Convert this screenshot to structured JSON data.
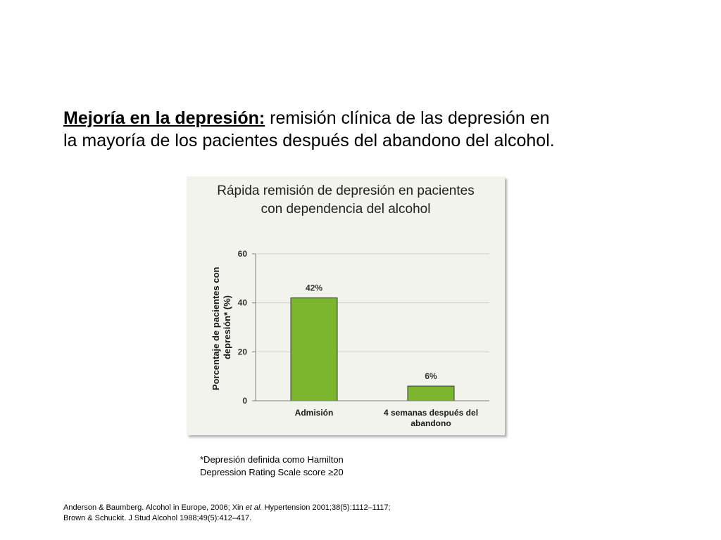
{
  "heading": {
    "lead": "Mejoría en la depresión:",
    "line1_rest": " remisión clínica de las depresión en",
    "line2": "la mayoría de los pacientes después del abandono del alcohol."
  },
  "chart_data": {
    "type": "bar",
    "title_line1": "Rápida remisión de depresión en pacientes",
    "title_line2": "con dependencia del alcohol",
    "ylabel_line1": "Porcentaje de pacientes con",
    "ylabel_line2": "depresión* (%)",
    "xlabel": "",
    "categories": [
      [
        "Admisión"
      ],
      [
        "4 semanas después del",
        "abandono"
      ]
    ],
    "values": [
      42,
      6
    ],
    "data_labels": [
      "42%",
      "6%"
    ],
    "yticks": [
      0,
      20,
      40,
      60
    ],
    "ylim": [
      0,
      60
    ],
    "grid": true,
    "bar_color": "#7cb62f"
  },
  "footnote": {
    "line1": "*Depresión definida como Hamilton",
    "line2": "Depression Rating Scale score ≥20"
  },
  "references": {
    "line1_pre": "Anderson & Baumberg. Alcohol in Europe, 2006; Xin ",
    "line1_em": "et al.",
    "line1_post": " Hypertension 2001;38(5):1112–1117;",
    "line2": "Brown & Schuckit. J Stud Alcohol 1988;49(5):412–417."
  }
}
